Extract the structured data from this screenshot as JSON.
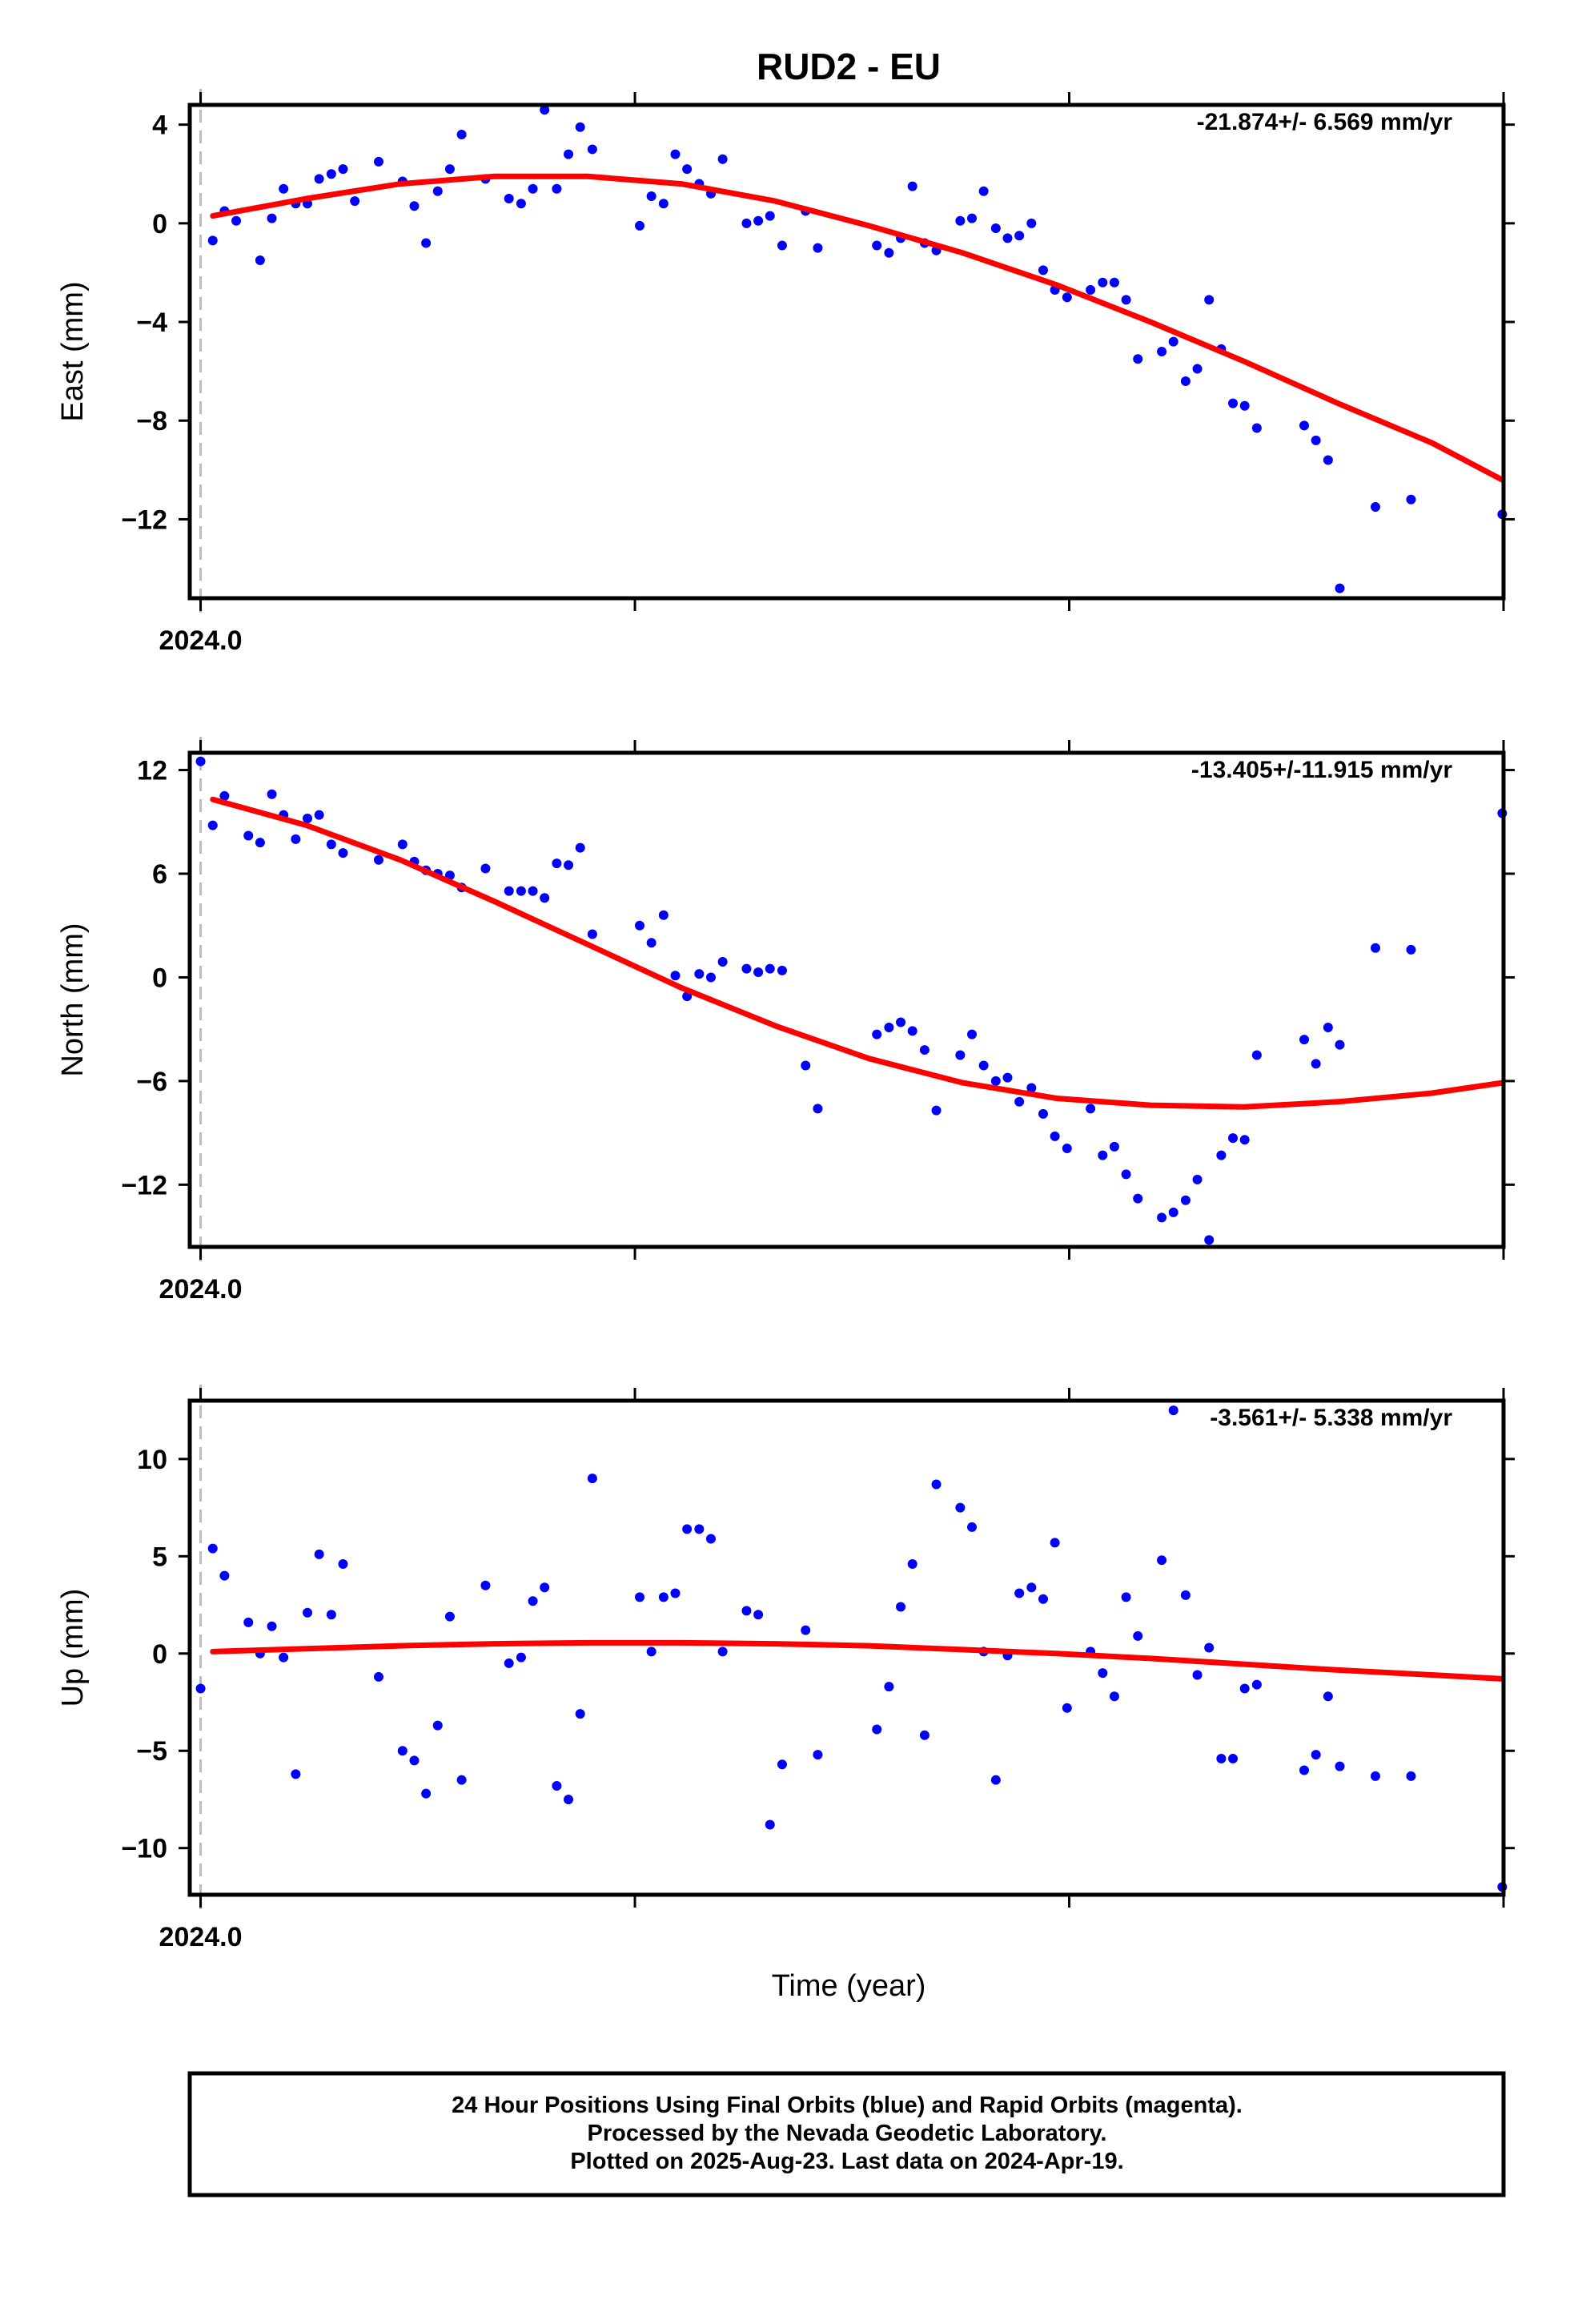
{
  "title": "RUD2 - EU",
  "xlabel": "Time (year)",
  "x_tick_label": "2024.0",
  "colors": {
    "final_points": "#0000ff",
    "fit_line": "#ff0000",
    "axes": "#000000",
    "start_marker": "#bbbbbb"
  },
  "footer": {
    "line1": "24 Hour Positions Using Final Orbits (blue) and Rapid Orbits (magenta).",
    "line2": "Processed by the Nevada Geodetic Laboratory.",
    "line3": "Plotted on 2025-Aug-23. Last data on 2024-Apr-19."
  },
  "chart_data": [
    {
      "type": "scatter",
      "ylabel": "East (mm)",
      "rate_label": "-21.874+/- 6.569 mm/yr",
      "xlim": [
        2023.9975,
        2024.3
      ],
      "ylim": [
        -15.2,
        4.8
      ],
      "yticks": [
        4,
        0,
        -4,
        -8,
        -12
      ],
      "ytick_labels": [
        "4",
        "0",
        "−4",
        "−8",
        "−12"
      ],
      "points": {
        "x": [
          2024.0028,
          2024.0055,
          2024.0082,
          2024.0137,
          2024.0164,
          2024.0191,
          2024.0219,
          2024.0246,
          2024.0273,
          2024.0301,
          2024.0328,
          2024.0355,
          2024.041,
          2024.0465,
          2024.0492,
          2024.0519,
          2024.0546,
          2024.0574,
          2024.0601,
          2024.0656,
          2024.071,
          2024.0738,
          2024.0765,
          2024.0792,
          2024.082,
          2024.0847,
          2024.0874,
          2024.0902,
          2024.1011,
          2024.1038,
          2024.1066,
          2024.1093,
          2024.112,
          2024.1148,
          2024.1175,
          2024.1202,
          2024.1257,
          2024.1284,
          2024.1311,
          2024.1339,
          2024.1393,
          2024.1421,
          2024.1557,
          2024.1585,
          2024.1612,
          2024.1639,
          2024.1667,
          2024.1694,
          2024.1749,
          2024.1776,
          2024.1803,
          2024.1831,
          2024.1858,
          2024.1885,
          2024.1913,
          2024.194,
          2024.1967,
          2024.1995,
          2024.2049,
          2024.2077,
          2024.2104,
          2024.2131,
          2024.2158,
          2024.2213,
          2024.224,
          2024.2268,
          2024.2295,
          2024.2322,
          2024.235,
          2024.2377,
          2024.2404,
          2024.2432,
          2024.2541,
          2024.2568,
          2024.2596,
          2024.2623,
          2024.2705,
          2024.2787,
          2024.2997
        ],
        "y": [
          -0.7,
          0.5,
          0.1,
          -1.5,
          0.2,
          1.4,
          0.8,
          0.8,
          1.8,
          2.0,
          2.2,
          0.9,
          2.5,
          1.7,
          0.7,
          -0.8,
          1.3,
          2.2,
          3.6,
          1.8,
          1.0,
          0.8,
          1.4,
          4.6,
          1.4,
          2.8,
          3.9,
          3.0,
          -0.1,
          1.1,
          0.8,
          2.8,
          2.2,
          1.6,
          1.2,
          2.6,
          0.0,
          0.1,
          0.3,
          -0.9,
          0.5,
          -1.0,
          -0.9,
          -1.2,
          -0.6,
          1.5,
          -0.8,
          -1.1,
          0.1,
          0.2,
          1.3,
          -0.2,
          -0.6,
          -0.5,
          0.0,
          -1.9,
          -2.7,
          -3.0,
          -2.7,
          -2.4,
          -2.4,
          -3.1,
          -5.5,
          -5.2,
          -4.8,
          -6.4,
          -5.9,
          -3.1,
          -5.1,
          -7.3,
          -7.4,
          -8.3,
          -8.2,
          -8.8,
          -9.6,
          -14.8,
          -11.5,
          -11.2,
          -11.8
        ],
        "color": "#0000ff"
      },
      "fit": {
        "x": [
          2024.0028,
          2024.0244,
          2024.046,
          2024.0676,
          2024.0892,
          2024.1107,
          2024.1323,
          2024.1539,
          2024.1755,
          2024.1971,
          2024.2187,
          2024.2403,
          2024.2619,
          2024.2835,
          2024.2997
        ],
        "y": [
          0.3,
          1.0,
          1.6,
          1.9,
          1.9,
          1.6,
          0.9,
          -0.1,
          -1.2,
          -2.5,
          -4.0,
          -5.6,
          -7.3,
          -8.9,
          -10.4
        ],
        "color": "#ff0000"
      }
    },
    {
      "type": "scatter",
      "ylabel": "North (mm)",
      "rate_label": "-13.405+/-11.915 mm/yr",
      "xlim": [
        2023.9975,
        2024.3
      ],
      "ylim": [
        -15.6,
        13.0
      ],
      "yticks": [
        12,
        6,
        0,
        -6,
        -12
      ],
      "ytick_labels": [
        "12",
        "6",
        "0",
        "−6",
        "−12"
      ],
      "points": {
        "x": [
          2024.0,
          2024.0028,
          2024.0055,
          2024.011,
          2024.0137,
          2024.0164,
          2024.0191,
          2024.0219,
          2024.0246,
          2024.0273,
          2024.0301,
          2024.0328,
          2024.041,
          2024.0465,
          2024.0492,
          2024.0519,
          2024.0546,
          2024.0574,
          2024.0601,
          2024.0656,
          2024.071,
          2024.0738,
          2024.0765,
          2024.0792,
          2024.082,
          2024.0847,
          2024.0874,
          2024.0902,
          2024.1011,
          2024.1038,
          2024.1066,
          2024.1093,
          2024.112,
          2024.1148,
          2024.1175,
          2024.1202,
          2024.1257,
          2024.1284,
          2024.1311,
          2024.1339,
          2024.1393,
          2024.1421,
          2024.1557,
          2024.1585,
          2024.1612,
          2024.1639,
          2024.1667,
          2024.1694,
          2024.1749,
          2024.1776,
          2024.1803,
          2024.1831,
          2024.1858,
          2024.1885,
          2024.1913,
          2024.194,
          2024.1967,
          2024.1995,
          2024.2049,
          2024.2077,
          2024.2104,
          2024.2131,
          2024.2158,
          2024.2213,
          2024.224,
          2024.2268,
          2024.2295,
          2024.2322,
          2024.235,
          2024.2377,
          2024.2404,
          2024.2432,
          2024.2541,
          2024.2568,
          2024.2596,
          2024.2623,
          2024.2705,
          2024.2787,
          2024.2997
        ],
        "y": [
          12.5,
          8.8,
          10.5,
          8.2,
          7.8,
          10.6,
          9.4,
          8.0,
          9.2,
          9.4,
          7.7,
          7.2,
          6.8,
          7.7,
          6.7,
          6.2,
          6.0,
          5.9,
          5.2,
          6.3,
          5.0,
          5.0,
          5.0,
          4.6,
          6.6,
          6.5,
          7.5,
          2.5,
          3.0,
          2.0,
          3.6,
          0.1,
          -1.1,
          0.2,
          0.0,
          0.9,
          0.5,
          0.3,
          0.5,
          0.4,
          -5.1,
          -7.6,
          -3.3,
          -2.9,
          -2.6,
          -3.1,
          -4.2,
          -7.7,
          -4.5,
          -3.3,
          -5.1,
          -6.0,
          -5.8,
          -7.2,
          -6.4,
          -7.9,
          -9.2,
          -9.9,
          -7.6,
          -10.3,
          -9.8,
          -11.4,
          -12.8,
          -13.9,
          -13.6,
          -12.9,
          -11.7,
          -15.2,
          -10.3,
          -9.3,
          -9.4,
          -4.5,
          -3.6,
          -5.0,
          -2.9,
          -3.9,
          1.7,
          1.6,
          9.5
        ],
        "color": "#0000ff"
      },
      "fit": {
        "x": [
          2024.0028,
          2024.0244,
          2024.046,
          2024.0676,
          2024.0892,
          2024.1107,
          2024.1323,
          2024.1539,
          2024.1755,
          2024.1971,
          2024.2187,
          2024.2403,
          2024.2619,
          2024.2835,
          2024.2997
        ],
        "y": [
          10.3,
          8.8,
          6.8,
          4.4,
          1.9,
          -0.6,
          -2.8,
          -4.7,
          -6.1,
          -7.0,
          -7.4,
          -7.5,
          -7.2,
          -6.7,
          -6.1
        ],
        "color": "#ff0000"
      }
    },
    {
      "type": "scatter",
      "ylabel": "Up (mm)",
      "rate_label": "-3.561+/- 5.338 mm/yr",
      "xlim": [
        2023.9975,
        2024.3
      ],
      "ylim": [
        -12.4,
        13.0
      ],
      "yticks": [
        10,
        5,
        0,
        -5,
        -10
      ],
      "ytick_labels": [
        "10",
        "5",
        "0",
        "−5",
        "−10"
      ],
      "points": {
        "x": [
          2024.0,
          2024.0028,
          2024.0055,
          2024.011,
          2024.0137,
          2024.0164,
          2024.0191,
          2024.0219,
          2024.0246,
          2024.0273,
          2024.0301,
          2024.0328,
          2024.041,
          2024.0465,
          2024.0492,
          2024.0519,
          2024.0546,
          2024.0574,
          2024.0601,
          2024.0656,
          2024.071,
          2024.0738,
          2024.0765,
          2024.0792,
          2024.082,
          2024.0847,
          2024.0874,
          2024.0902,
          2024.1011,
          2024.1038,
          2024.1066,
          2024.1093,
          2024.112,
          2024.1148,
          2024.1175,
          2024.1202,
          2024.1257,
          2024.1284,
          2024.1311,
          2024.1339,
          2024.1393,
          2024.1421,
          2024.1557,
          2024.1585,
          2024.1612,
          2024.1639,
          2024.1667,
          2024.1694,
          2024.1749,
          2024.1776,
          2024.1803,
          2024.1831,
          2024.1858,
          2024.1885,
          2024.1913,
          2024.194,
          2024.1967,
          2024.1995,
          2024.2049,
          2024.2077,
          2024.2104,
          2024.2131,
          2024.2158,
          2024.2213,
          2024.224,
          2024.2268,
          2024.2295,
          2024.2322,
          2024.235,
          2024.2377,
          2024.2404,
          2024.2432,
          2024.2541,
          2024.2568,
          2024.2596,
          2024.2623,
          2024.2705,
          2024.2787,
          2024.2997
        ],
        "y": [
          -1.8,
          5.4,
          4.0,
          1.6,
          0.0,
          1.4,
          -0.2,
          -6.2,
          2.1,
          5.1,
          2.0,
          4.6,
          -1.2,
          -5.0,
          -5.5,
          -7.2,
          -3.7,
          1.9,
          -6.5,
          3.5,
          -0.5,
          -0.2,
          2.7,
          3.4,
          -6.8,
          -7.5,
          -3.1,
          9.0,
          2.9,
          0.1,
          2.9,
          3.1,
          6.4,
          6.4,
          5.9,
          0.1,
          2.2,
          2.0,
          -8.8,
          -5.7,
          1.2,
          -5.2,
          -3.9,
          -1.7,
          2.4,
          4.6,
          -4.2,
          8.7,
          7.5,
          6.5,
          0.1,
          -6.5,
          -0.1,
          3.1,
          3.4,
          2.8,
          5.7,
          -2.8,
          0.1,
          -1.0,
          -2.2,
          2.9,
          0.9,
          4.8,
          12.5,
          3.0,
          -1.1,
          0.3,
          -5.4,
          -5.4,
          -1.8,
          -1.6,
          -6.0,
          -5.2,
          -2.2,
          -5.8,
          -6.3,
          -6.3,
          -12.0
        ],
        "color": "#0000ff"
      },
      "fit": {
        "x": [
          2024.0028,
          2024.0244,
          2024.046,
          2024.0676,
          2024.0892,
          2024.1107,
          2024.1323,
          2024.1539,
          2024.1755,
          2024.1971,
          2024.2187,
          2024.2403,
          2024.2619,
          2024.2835,
          2024.2997
        ],
        "y": [
          0.1,
          0.25,
          0.4,
          0.5,
          0.55,
          0.55,
          0.5,
          0.4,
          0.2,
          0.0,
          -0.25,
          -0.55,
          -0.85,
          -1.1,
          -1.3
        ],
        "color": "#ff0000"
      }
    }
  ]
}
